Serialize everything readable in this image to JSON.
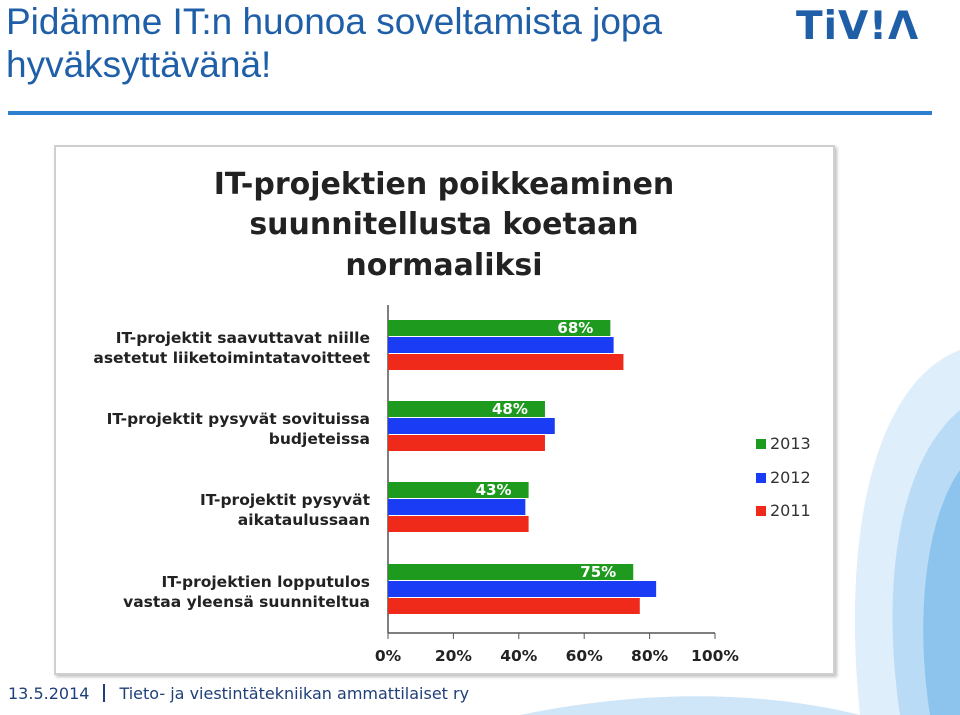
{
  "slide": {
    "title": "Pidämme IT:n huonoa soveltamista jopa hyväksyttävänä!",
    "logo_text": "TiV!Λ",
    "footer_date": "13.5.2014",
    "footer_org": "Tieto- ja viestintätekniikan ammattilaiset ry"
  },
  "colors": {
    "accent": "#1f5fa8",
    "rule": "#2f7fd1",
    "series_2013": "#1e9a1e",
    "series_2012": "#1a3cf5",
    "series_2011": "#f02a1a"
  },
  "chart_data": {
    "type": "bar",
    "orientation": "horizontal",
    "title": "IT-projektien poikkeaminen suunnitellusta koetaan normaaliksi",
    "title_lines": [
      "IT-projektien poikkeaminen",
      "suunnitellusta koetaan",
      "normaaliksi"
    ],
    "categories": [
      [
        "IT-projektit saavuttavat niille",
        "asetetut liiketoimintatavoitteet"
      ],
      [
        "IT-projektit pysyvät sovituissa",
        "budjeteissa"
      ],
      [
        "IT-projektit pysyvät",
        "aikataulussaan"
      ],
      [
        "IT-projektien lopputulos",
        "vastaa yleensä suunniteltua"
      ]
    ],
    "series": [
      {
        "name": "2013",
        "values": [
          68,
          48,
          43,
          75
        ]
      },
      {
        "name": "2012",
        "values": [
          69,
          51,
          42,
          82
        ]
      },
      {
        "name": "2011",
        "values": [
          72,
          48,
          43,
          77
        ]
      }
    ],
    "data_labels": [
      "68%",
      "48%",
      "43%",
      "75%"
    ],
    "xlim": [
      0,
      100
    ],
    "x_ticks": [
      "0%",
      "20%",
      "40%",
      "60%",
      "80%",
      "100%"
    ],
    "grid": false,
    "legend_position": "right"
  }
}
